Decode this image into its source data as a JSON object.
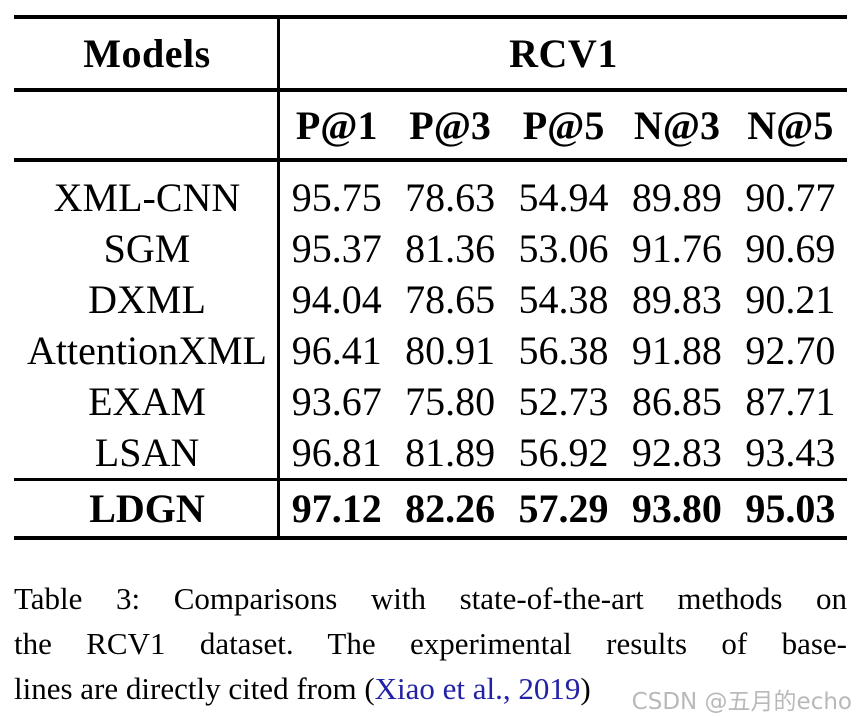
{
  "table": {
    "models_header": "Models",
    "dataset_header": "RCV1",
    "metrics": [
      "P@1",
      "P@3",
      "P@5",
      "N@3",
      "N@5"
    ],
    "rows": [
      {
        "model": "XML-CNN",
        "values": [
          "95.75",
          "78.63",
          "54.94",
          "89.89",
          "90.77"
        ]
      },
      {
        "model": "SGM",
        "values": [
          "95.37",
          "81.36",
          "53.06",
          "91.76",
          "90.69"
        ]
      },
      {
        "model": "DXML",
        "values": [
          "94.04",
          "78.65",
          "54.38",
          "89.83",
          "90.21"
        ]
      },
      {
        "model": "AttentionXML",
        "values": [
          "96.41",
          "80.91",
          "56.38",
          "91.88",
          "92.70"
        ]
      },
      {
        "model": "EXAM",
        "values": [
          "93.67",
          "75.80",
          "52.73",
          "86.85",
          "87.71"
        ]
      },
      {
        "model": "LSAN",
        "values": [
          "96.81",
          "81.89",
          "56.92",
          "92.83",
          "93.43"
        ]
      }
    ],
    "highlight_row": {
      "model": "LDGN",
      "values": [
        "97.12",
        "82.26",
        "57.29",
        "93.80",
        "95.03"
      ]
    }
  },
  "caption": {
    "line1": "Table 3: Comparisons with state-of-the-art methods on",
    "line2": "the RCV1 dataset.  The experimental results of base-",
    "line3_pre": "lines are directly cited from (",
    "citation": "Xiao et al., 2019",
    "line3_close": ")"
  },
  "watermark": "CSDN @五月的echo",
  "colors": {
    "text": "#000000",
    "citation_blue": "#2222a6",
    "watermark_gray": "#b9b9b9"
  }
}
